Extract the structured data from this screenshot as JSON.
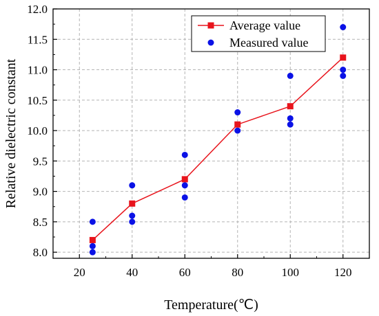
{
  "chart_data": {
    "type": "scatter",
    "xlabel": "Temperature(℃)",
    "ylabel": "Relative dielectric constant",
    "xlim": [
      10,
      130
    ],
    "ylim": [
      7.9,
      12.0
    ],
    "xticks": [
      20,
      40,
      60,
      80,
      100,
      120
    ],
    "xtick_labels": [
      "20",
      "40",
      "60",
      "80",
      "100",
      "120"
    ],
    "yticks": [
      8.0,
      8.5,
      9.0,
      9.5,
      10.0,
      10.5,
      11.0,
      11.5,
      12.0
    ],
    "ytick_labels": [
      "8.0",
      "8.5",
      "9.0",
      "9.5",
      "10.0",
      "10.5",
      "11.0",
      "11.5",
      "12.0"
    ],
    "grid": true,
    "legend_position": "top-right",
    "series": [
      {
        "name": "Average value",
        "kind": "line-square-markers",
        "color": "#e8141c",
        "x": [
          25,
          40,
          60,
          80,
          100,
          120
        ],
        "y": [
          8.2,
          8.8,
          9.2,
          10.1,
          10.4,
          11.2
        ]
      },
      {
        "name": "Measured value",
        "kind": "scatter-circle-markers",
        "color": "#0b12e6",
        "x": [
          25,
          25,
          25,
          40,
          40,
          40,
          60,
          60,
          60,
          80,
          80,
          100,
          100,
          100,
          120,
          120,
          120
        ],
        "y": [
          8.5,
          8.1,
          8.0,
          9.1,
          8.6,
          8.5,
          9.6,
          9.1,
          8.9,
          10.3,
          10.0,
          10.9,
          10.2,
          10.1,
          11.7,
          11.0,
          10.9
        ]
      }
    ]
  }
}
